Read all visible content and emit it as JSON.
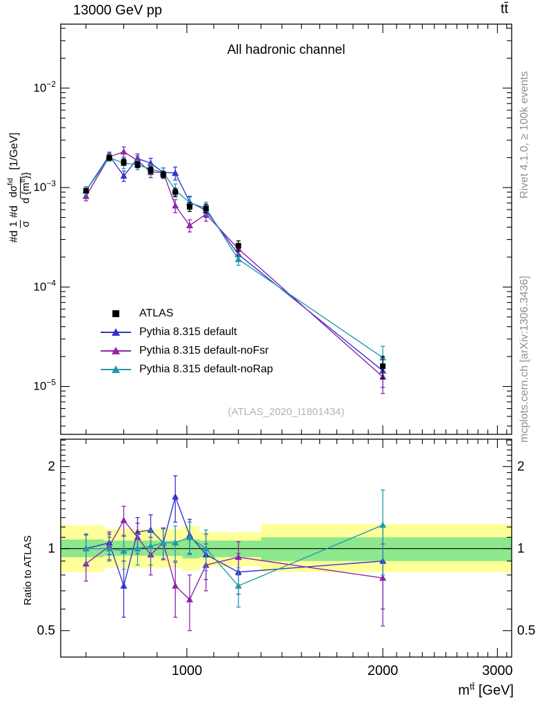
{
  "header": {
    "left": "13000 GeV pp",
    "right": "tt̄"
  },
  "panel_title": "All hadronic channel",
  "watermark": "(ATLAS_2020_I1801434)",
  "side_notes": {
    "top": "Rivet 4.1.0, ≥ 100k events",
    "bottom": "mcplots.cern.ch [arXiv:1306.3436]"
  },
  "y_axis_label": {
    "d1": "#d",
    "frac1_num": "1",
    "frac1_den": "σ",
    "d2": "#d",
    "frac2_num_base": "dσ",
    "frac2_num_sup": "fid",
    "frac2_den_base": "d {m",
    "frac2_den_sup": "tt",
    "frac2_den_close": "}}",
    "unit": "[1/GeV]"
  },
  "x_axis_label": {
    "base": "m",
    "sup": "tt̄",
    "unit": " [GeV]"
  },
  "ratio_axis_label": "Ratio to ATLAS",
  "chart_data": {
    "type": "line",
    "title": "All hadronic channel",
    "xlabel": "m^tt [GeV]",
    "ylabel": "1/σ dσ^fid/d{m^tt} [1/GeV]",
    "x_scale": "log",
    "y_scale": "log",
    "x_range": [
      640,
      3155
    ],
    "x_ticks_major": [
      1000,
      2000,
      3000
    ],
    "main": {
      "y_range": [
        3.3e-06,
        0.044
      ],
      "y_tick_exponents": [
        -2,
        -3,
        -4,
        -5
      ]
    },
    "ratio": {
      "y_range": [
        0.4,
        2.52
      ],
      "y_ticks": [
        0.5,
        1,
        2
      ],
      "band_colors": {
        "outer": "#ffff99",
        "inner": "#8de88d"
      },
      "bands": [
        {
          "x_range": [
            640,
            745
          ],
          "outer": [
            0.82,
            1.22
          ],
          "inner": [
            0.93,
            1.08
          ]
        },
        {
          "x_range": [
            745,
            985
          ],
          "outer": [
            0.85,
            1.18
          ],
          "inner": [
            0.94,
            1.07
          ]
        },
        {
          "x_range": [
            985,
            1045
          ],
          "outer": [
            0.83,
            1.21
          ],
          "inner": [
            0.92,
            1.08
          ]
        },
        {
          "x_range": [
            1045,
            1300
          ],
          "outer": [
            0.86,
            1.15
          ],
          "inner": [
            0.93,
            1.07
          ]
        },
        {
          "x_range": [
            1300,
            3155
          ],
          "outer": [
            0.82,
            1.23
          ],
          "inner": [
            0.9,
            1.1
          ]
        }
      ]
    },
    "x": [
      700,
      760,
      800,
      840,
      880,
      920,
      960,
      1010,
      1070,
      1200,
      2000
    ],
    "series": [
      {
        "name": "ATLAS",
        "marker": "square",
        "color": "#000000",
        "values": [
          0.00093,
          0.002,
          0.0018,
          0.0017,
          0.0015,
          0.00135,
          0.0009,
          0.00064,
          0.00062,
          0.00026,
          1.6e-05
        ],
        "rel_err": [
          0.05,
          0.06,
          0.07,
          0.07,
          0.08,
          0.08,
          0.09,
          0.1,
          0.1,
          0.12,
          0.25
        ]
      },
      {
        "name": "Pythia 8.315 default",
        "marker": "triangle",
        "color": "#3333cc",
        "values": [
          0.00093,
          0.0021,
          0.00131,
          0.00196,
          0.00176,
          0.00142,
          0.0014,
          0.000717,
          0.000589,
          0.000213,
          1.44e-05
        ],
        "rel_err": [
          0.1,
          0.08,
          0.12,
          0.11,
          0.12,
          0.11,
          0.15,
          0.14,
          0.15,
          0.13,
          0.32
        ],
        "ratio": [
          1.0,
          1.05,
          0.73,
          1.15,
          1.17,
          1.05,
          1.55,
          1.12,
          0.95,
          0.82,
          0.9
        ],
        "ratio_err": [
          0.13,
          0.1,
          0.17,
          0.15,
          0.16,
          0.14,
          0.3,
          0.16,
          0.18,
          0.14,
          0.3
        ]
      },
      {
        "name": "Pythia 8.315 default-noFsr",
        "marker": "triangle",
        "color": "#8e24aa",
        "values": [
          0.000818,
          0.00204,
          0.00229,
          0.00187,
          0.00143,
          0.00142,
          0.000657,
          0.000416,
          0.000539,
          0.000242,
          1.25e-05
        ],
        "rel_err": [
          0.1,
          0.08,
          0.12,
          0.11,
          0.12,
          0.11,
          0.15,
          0.14,
          0.15,
          0.13,
          0.32
        ],
        "ratio": [
          0.88,
          1.02,
          1.27,
          1.1,
          0.95,
          1.05,
          0.73,
          0.65,
          0.87,
          0.93,
          0.78
        ],
        "ratio_err": [
          0.12,
          0.11,
          0.16,
          0.14,
          0.15,
          0.14,
          0.17,
          0.15,
          0.17,
          0.13,
          0.26
        ]
      },
      {
        "name": "Pythia 8.315 default-noRap",
        "marker": "triangle",
        "color": "#2299aa",
        "values": [
          0.00093,
          0.002,
          0.00176,
          0.0017,
          0.00153,
          0.00142,
          0.000945,
          0.000704,
          0.00062,
          0.00019,
          1.95e-05
        ],
        "rel_err": [
          0.1,
          0.08,
          0.12,
          0.11,
          0.12,
          0.11,
          0.15,
          0.14,
          0.15,
          0.13,
          0.3
        ],
        "ratio": [
          1.0,
          1.0,
          0.98,
          1.0,
          1.02,
          1.05,
          1.05,
          1.1,
          1.0,
          0.73,
          1.22
        ],
        "ratio_err": [
          0.12,
          0.1,
          0.14,
          0.13,
          0.15,
          0.13,
          0.16,
          0.15,
          0.17,
          0.12,
          0.42
        ]
      }
    ]
  }
}
